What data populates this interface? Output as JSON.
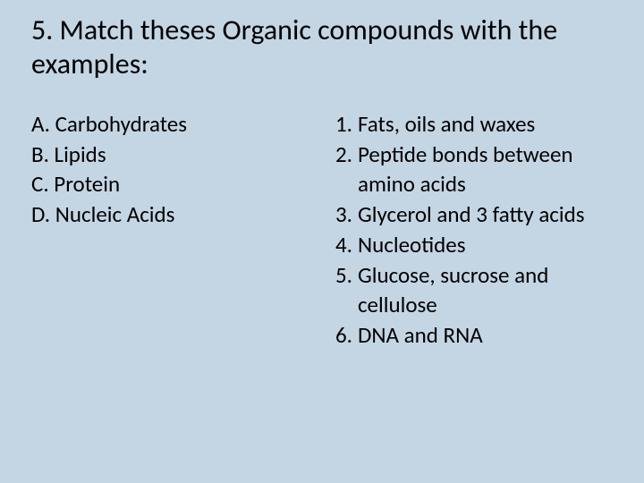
{
  "background_color": "#c4d5e4",
  "title": {
    "text": "5. Match theses Organic compounds  with the examples:",
    "fontsize": 32,
    "color": "#000000",
    "font_weight": "400"
  },
  "body_fontsize": 25,
  "body_color": "#000000",
  "left_column": {
    "items": [
      "A. Carbohydrates",
      "B. Lipids",
      "C. Protein",
      "D.  Nucleic Acids"
    ]
  },
  "right_column": {
    "items": [
      {
        "num": "1.",
        "text": "Fats, oils and waxes"
      },
      {
        "num": "2.",
        "text": "Peptide bonds between amino acids"
      },
      {
        "num": "3.",
        "text": "Glycerol and 3 fatty acids"
      },
      {
        "num": "4.",
        "text": "Nucleotides"
      },
      {
        "num": "5.",
        "text": "Glucose, sucrose and cellulose"
      },
      {
        "num": "6.",
        "text": "DNA and RNA"
      }
    ]
  }
}
